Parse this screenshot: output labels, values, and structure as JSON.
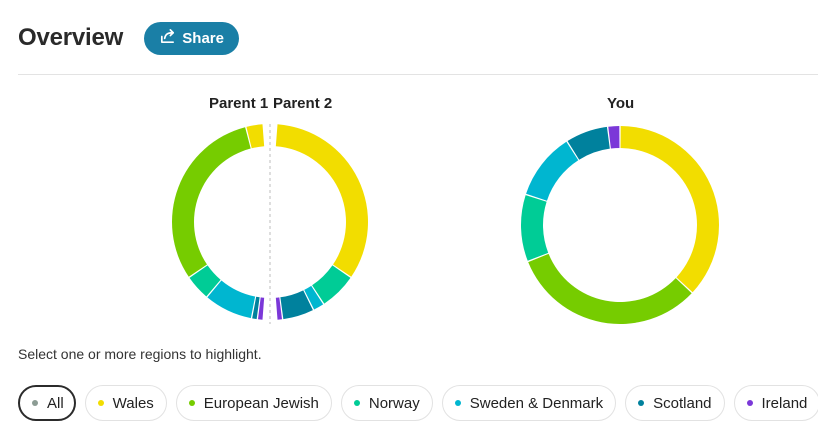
{
  "header": {
    "title": "Overview",
    "share_label": "Share"
  },
  "labels": {
    "parent1": "Parent 1",
    "parent2": "Parent 2",
    "you": "You"
  },
  "hint": "Select one or more regions to highlight.",
  "colors": {
    "wales": "#f2dd00",
    "european_jewish": "#76cc00",
    "norway": "#00cc96",
    "sweden_denmark": "#00b6d0",
    "scotland": "#00819d",
    "ireland": "#7b38d8",
    "all": "#8c9c94",
    "brand": "#1a7fa6"
  },
  "chips": [
    {
      "key": "all",
      "label": "All",
      "color": "#8c9c94",
      "selected": true
    },
    {
      "key": "wales",
      "label": "Wales",
      "color": "#f2dd00",
      "selected": false
    },
    {
      "key": "european_jewish",
      "label": "European Jewish",
      "color": "#76cc00",
      "selected": false
    },
    {
      "key": "norway",
      "label": "Norway",
      "color": "#00cc96",
      "selected": false
    },
    {
      "key": "sweden_denmark",
      "label": "Sweden & Denmark",
      "color": "#00b6d0",
      "selected": false
    },
    {
      "key": "scotland",
      "label": "Scotland",
      "color": "#00819d",
      "selected": false
    },
    {
      "key": "ireland",
      "label": "Ireland",
      "color": "#7b38d8",
      "selected": false
    }
  ],
  "chart_data": [
    {
      "type": "pie",
      "name": "Parent 1",
      "variant": "half-ring-left",
      "slices": [
        {
          "region": "Wales",
          "value": 6
        },
        {
          "region": "European Jewish",
          "value": 64
        },
        {
          "region": "Norway",
          "value": 9
        },
        {
          "region": "Sweden & Denmark",
          "value": 17
        },
        {
          "region": "Scotland",
          "value": 2
        },
        {
          "region": "Ireland",
          "value": 2
        }
      ]
    },
    {
      "type": "pie",
      "name": "Parent 2",
      "variant": "half-ring-right",
      "slices": [
        {
          "region": "Wales",
          "value": 70
        },
        {
          "region": "Norway",
          "value": 13
        },
        {
          "region": "Sweden & Denmark",
          "value": 4
        },
        {
          "region": "Scotland",
          "value": 11
        },
        {
          "region": "Ireland",
          "value": 2
        }
      ]
    },
    {
      "type": "pie",
      "name": "You",
      "variant": "ring",
      "slices": [
        {
          "region": "Wales",
          "value": 37
        },
        {
          "region": "European Jewish",
          "value": 32
        },
        {
          "region": "Norway",
          "value": 11
        },
        {
          "region": "Sweden & Denmark",
          "value": 11
        },
        {
          "region": "Scotland",
          "value": 7
        },
        {
          "region": "Ireland",
          "value": 2
        }
      ]
    }
  ]
}
